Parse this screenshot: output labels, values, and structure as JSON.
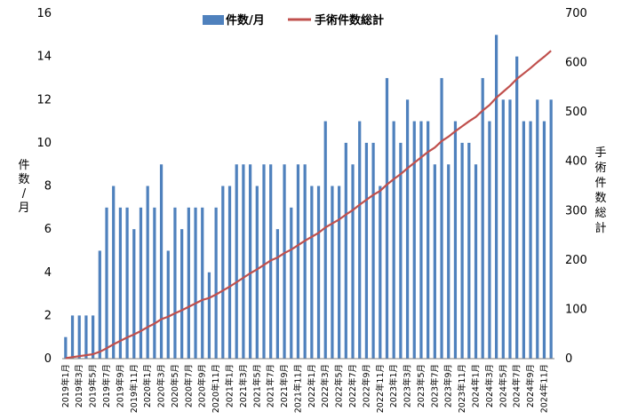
{
  "chart_data": {
    "type": "bar+line",
    "categories": [
      "2019年1月",
      "2019年2月",
      "2019年3月",
      "2019年4月",
      "2019年5月",
      "2019年6月",
      "2019年7月",
      "2019年8月",
      "2019年9月",
      "2019年10月",
      "2019年11月",
      "2019年12月",
      "2020年1月",
      "2020年2月",
      "2020年3月",
      "2020年4月",
      "2020年5月",
      "2020年6月",
      "2020年7月",
      "2020年8月",
      "2020年9月",
      "2020年10月",
      "2020年11月",
      "2020年12月",
      "2021年1月",
      "2021年2月",
      "2021年3月",
      "2021年4月",
      "2021年5月",
      "2021年6月",
      "2021年7月",
      "2021年8月",
      "2021年9月",
      "2021年10月",
      "2021年11月",
      "2021年12月",
      "2022年1月",
      "2022年2月",
      "2022年3月",
      "2022年4月",
      "2022年5月",
      "2022年6月",
      "2022年7月",
      "2022年8月",
      "2022年9月",
      "2022年10月",
      "2022年11月",
      "2022年12月",
      "2023年1月",
      "2023年2月",
      "2023年3月",
      "2023年4月",
      "2023年5月",
      "2023年6月",
      "2023年7月",
      "2023年8月",
      "2023年9月",
      "2023年10月",
      "2023年11月",
      "2023年12月",
      "2024年1月",
      "2024年2月",
      "2024年3月",
      "2024年4月",
      "2024年5月",
      "2024年6月",
      "2024年7月",
      "2024年8月",
      "2024年9月",
      "2024年10月",
      "2024年11月",
      "2024年12月"
    ],
    "x_tick_labels": [
      "2019年1月",
      "2019年3月",
      "2019年5月",
      "2019年7月",
      "2019年9月",
      "2019年11月",
      "2020年1月",
      "2020年3月",
      "2020年5月",
      "2020年7月",
      "2020年9月",
      "2020年11月",
      "2021年1月",
      "2021年3月",
      "2021年5月",
      "2021年7月",
      "2021年9月",
      "2021年11月",
      "2022年1月",
      "2022年3月",
      "2022年5月",
      "2022年7月",
      "2022年9月",
      "2022年11月",
      "2023年1月",
      "2023年3月",
      "2023年5月",
      "2023年7月",
      "2023年9月",
      "2023年11月",
      "2024年1月",
      "2024年3月",
      "2024年5月",
      "2024年7月",
      "2024年9月",
      "2024年11月"
    ],
    "series": [
      {
        "name": "件数/月",
        "type": "bar",
        "axis": "left",
        "color": "#4f81bd",
        "values": [
          1,
          2,
          2,
          2,
          2,
          5,
          7,
          8,
          7,
          7,
          6,
          7,
          8,
          7,
          9,
          5,
          7,
          6,
          7,
          7,
          7,
          4,
          7,
          8,
          8,
          9,
          9,
          9,
          8,
          9,
          9,
          6,
          9,
          7,
          9,
          9,
          8,
          8,
          11,
          8,
          8,
          10,
          9,
          11,
          10,
          10,
          8,
          13,
          11,
          10,
          12,
          11,
          11,
          11,
          9,
          13,
          9,
          11,
          10,
          10,
          9,
          13,
          11,
          15,
          12,
          12,
          14,
          11,
          11,
          12,
          11,
          12
        ]
      },
      {
        "name": "手術件数総計",
        "type": "line",
        "axis": "right",
        "color": "#c0504d",
        "values": [
          1,
          3,
          5,
          7,
          9,
          14,
          21,
          29,
          36,
          43,
          49,
          56,
          64,
          71,
          80,
          85,
          92,
          98,
          105,
          112,
          119,
          123,
          130,
          138,
          146,
          155,
          164,
          173,
          181,
          190,
          199,
          205,
          214,
          221,
          230,
          239,
          247,
          255,
          266,
          274,
          282,
          292,
          301,
          312,
          322,
          332,
          340,
          353,
          364,
          374,
          386,
          397,
          408,
          419,
          428,
          441,
          450,
          461,
          471,
          481,
          490,
          503,
          514,
          529,
          541,
          553,
          567,
          578,
          589,
          601,
          612,
          624
        ]
      }
    ],
    "y_left": {
      "label": "件数/月",
      "ylim": [
        0,
        16
      ],
      "ticks": [
        "0",
        "2",
        "4",
        "6",
        "8",
        "10",
        "12",
        "14",
        "16"
      ]
    },
    "y_right": {
      "label": "手術件数総計",
      "ylim": [
        0,
        700
      ],
      "ticks": [
        "0",
        "100",
        "200",
        "300",
        "400",
        "500",
        "600",
        "700"
      ]
    },
    "grid": false,
    "legend": {
      "position": "top-center",
      "items": [
        "件数/月",
        "手術件数総計"
      ]
    }
  }
}
